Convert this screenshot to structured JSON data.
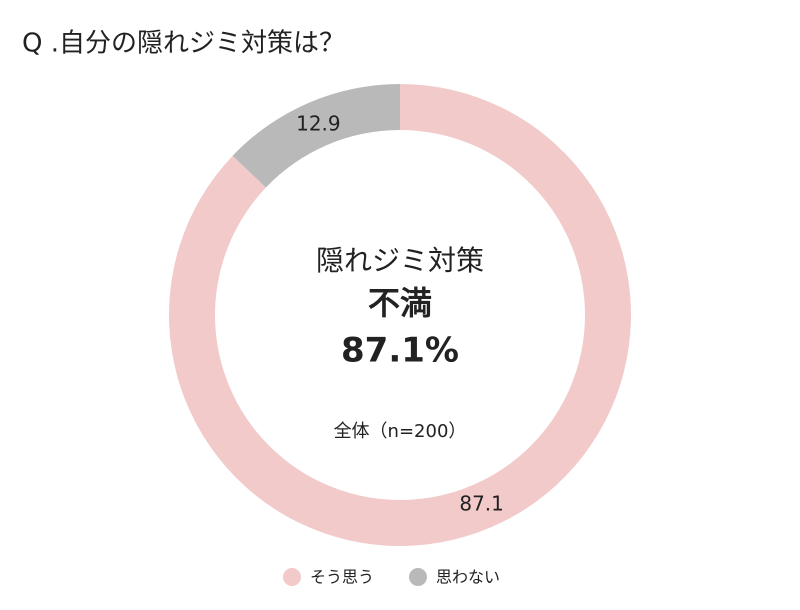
{
  "chart_data": {
    "type": "pie",
    "donut": true,
    "title": "Q .自分の隠れジミ対策は？",
    "center_text": [
      "隠れジミ対策",
      "不満",
      "87.1%",
      "全体（n=200）"
    ],
    "categories": [
      "そう思う",
      "思わない"
    ],
    "values": [
      87.1,
      12.9
    ],
    "colors": [
      "#f2caca",
      "#b9b9b9"
    ]
  }
}
